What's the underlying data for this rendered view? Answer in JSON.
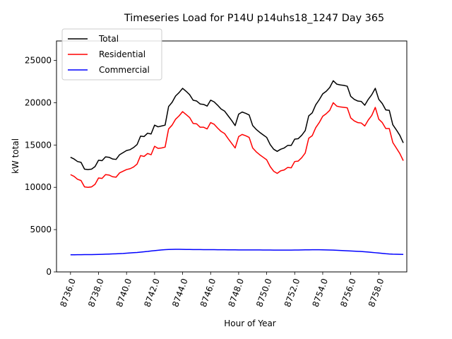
{
  "chart_data": {
    "type": "line",
    "title": "Timeseries Load for P14U p14uhs18_1247  Day 365",
    "xlabel": "Hour of Year",
    "ylabel": "kW total",
    "xlim": [
      8735.0,
      8760.0
    ],
    "ylim": [
      0,
      27300
    ],
    "x_ticks": [
      8736.0,
      8738.0,
      8740.0,
      8742.0,
      8744.0,
      8746.0,
      8748.0,
      8750.0,
      8752.0,
      8754.0,
      8756.0,
      8758.0
    ],
    "x_tick_labels": [
      "8736.0",
      "8738.0",
      "8740.0",
      "8742.0",
      "8744.0",
      "8746.0",
      "8748.0",
      "8750.0",
      "8752.0",
      "8754.0",
      "8756.0",
      "8758.0"
    ],
    "y_ticks": [
      0,
      5000,
      10000,
      15000,
      20000,
      25000
    ],
    "y_tick_labels": [
      "0",
      "5000",
      "10000",
      "15000",
      "20000",
      "25000"
    ],
    "grid": false,
    "legend_position": "top-left",
    "x_start": 8736.0,
    "x_step": 0.25,
    "series": [
      {
        "name": "Total",
        "color": "#000000",
        "values": [
          13550,
          13350,
          13050,
          12950,
          12150,
          12100,
          12150,
          12450,
          13200,
          13150,
          13600,
          13550,
          13350,
          13300,
          13850,
          14100,
          14350,
          14450,
          14700,
          15050,
          16050,
          16000,
          16400,
          16300,
          17350,
          17150,
          17250,
          17350,
          19550,
          20050,
          20800,
          21200,
          21700,
          21350,
          20950,
          20300,
          20200,
          19850,
          19800,
          19600,
          20300,
          20100,
          19700,
          19250,
          19000,
          18450,
          17900,
          17300,
          18650,
          18900,
          18750,
          18550,
          17300,
          16850,
          16500,
          16200,
          15900,
          15050,
          14500,
          14250,
          14500,
          14650,
          14950,
          14950,
          15700,
          15750,
          16150,
          16700,
          18450,
          18800,
          19750,
          20350,
          21050,
          21350,
          21800,
          22600,
          22200,
          22100,
          22050,
          21950,
          20750,
          20400,
          20200,
          20150,
          19700,
          20400,
          20950,
          21700,
          20400,
          19900,
          19150,
          19100,
          17400,
          16800,
          16150,
          15250
        ]
      },
      {
        "name": "Residential",
        "color": "#ff0000",
        "values": [
          11500,
          11300,
          10950,
          10800,
          10050,
          10000,
          10050,
          10350,
          11100,
          11050,
          11500,
          11450,
          11250,
          11200,
          11700,
          11900,
          12100,
          12200,
          12400,
          12750,
          13750,
          13650,
          14000,
          13850,
          14850,
          14600,
          14650,
          14750,
          16900,
          17350,
          18050,
          18450,
          18950,
          18600,
          18250,
          17550,
          17500,
          17100,
          17100,
          16900,
          17650,
          17450,
          17000,
          16600,
          16350,
          15750,
          15200,
          14650,
          16000,
          16250,
          16100,
          15900,
          14650,
          14200,
          13850,
          13550,
          13250,
          12450,
          11900,
          11650,
          11950,
          12050,
          12350,
          12300,
          13050,
          13100,
          13500,
          14050,
          15800,
          16100,
          17050,
          17650,
          18400,
          18700,
          19100,
          20000,
          19600,
          19500,
          19450,
          19400,
          18200,
          17850,
          17650,
          17600,
          17250,
          17950,
          18500,
          19450,
          18050,
          17650,
          16950,
          16950,
          15300,
          14650,
          14000,
          13150
        ]
      },
      {
        "name": "Commercial",
        "color": "#0000ff",
        "values": [
          2020,
          2025,
          2030,
          2035,
          2040,
          2045,
          2050,
          2060,
          2070,
          2080,
          2095,
          2110,
          2125,
          2140,
          2160,
          2180,
          2210,
          2240,
          2270,
          2300,
          2340,
          2380,
          2420,
          2470,
          2520,
          2560,
          2600,
          2630,
          2650,
          2660,
          2670,
          2670,
          2660,
          2650,
          2650,
          2645,
          2640,
          2640,
          2635,
          2630,
          2630,
          2625,
          2620,
          2620,
          2615,
          2610,
          2610,
          2605,
          2600,
          2600,
          2600,
          2600,
          2600,
          2595,
          2595,
          2590,
          2590,
          2585,
          2580,
          2580,
          2575,
          2575,
          2580,
          2580,
          2585,
          2590,
          2600,
          2605,
          2610,
          2615,
          2615,
          2615,
          2610,
          2600,
          2590,
          2575,
          2555,
          2535,
          2515,
          2495,
          2475,
          2455,
          2435,
          2410,
          2380,
          2350,
          2310,
          2270,
          2230,
          2190,
          2150,
          2120,
          2100,
          2090,
          2080,
          2070
        ]
      }
    ]
  }
}
